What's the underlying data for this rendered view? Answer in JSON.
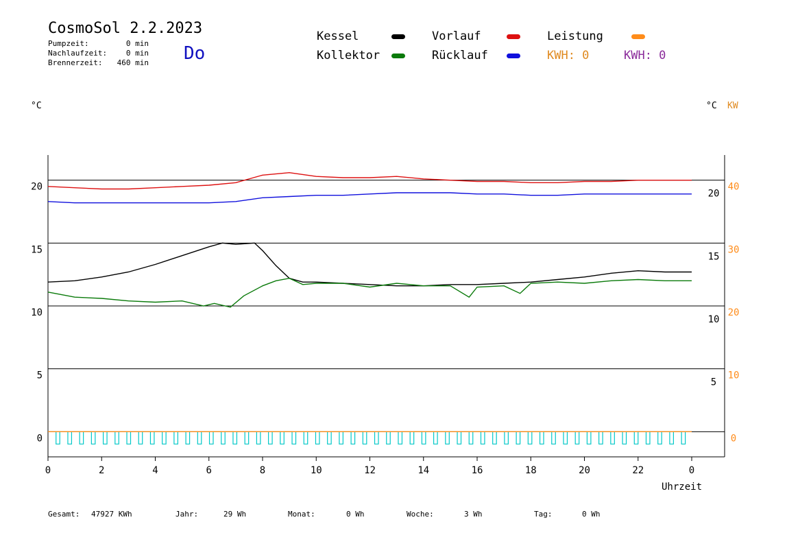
{
  "header": {
    "title": "CosmoSol 2.2.2023",
    "day": "Do",
    "stats": [
      {
        "label": "Pumpzeit:",
        "value": "0 min"
      },
      {
        "label": "Nachlaufzeit:",
        "value": "0 min"
      },
      {
        "label": "Brennerzeit:",
        "value": "460 min"
      }
    ]
  },
  "legend": {
    "kessel": "Kessel",
    "vorlauf": "Vorlauf",
    "leistung": "Leistung",
    "kollektor": "Kollektor",
    "ruecklauf": "Rücklauf",
    "kwh1": "KWH: 0",
    "kwh2": "KWH: 0"
  },
  "colors": {
    "kessel": "#000000",
    "vorlauf": "#dd1010",
    "leistung": "#ff8c1a",
    "kollektor": "#0a7a0a",
    "ruecklauf": "#1010dd",
    "kwh1": "#e08a20",
    "kwh2": "#8a2a9a",
    "pump": "#00c8c8"
  },
  "units": {
    "left": "°C",
    "right_c": "°C",
    "right_kw": "KW",
    "xlabel": "Uhrzeit"
  },
  "footer": [
    {
      "label": "Gesamt:",
      "value": "47927 KWh"
    },
    {
      "label": "Jahr:",
      "value": "29 Wh"
    },
    {
      "label": "Monat:",
      "value": "0 Wh"
    },
    {
      "label": "Woche:",
      "value": "3 Wh"
    },
    {
      "label": "Tag:",
      "value": "0 Wh"
    }
  ],
  "chart_data": {
    "type": "line",
    "xlabel": "Uhrzeit",
    "x_ticks": [
      "0",
      "2",
      "4",
      "6",
      "8",
      "10",
      "12",
      "14",
      "16",
      "18",
      "20",
      "22",
      "0"
    ],
    "xlim": [
      0,
      24
    ],
    "ylim": [
      -2,
      22
    ],
    "y_ticks_left": [
      "20",
      "15",
      "10",
      "5",
      "0"
    ],
    "y_ticks_right_c": [
      "20",
      "15",
      "10",
      "5"
    ],
    "y_ticks_right_kw": [
      "40",
      "30",
      "20",
      "10",
      "0"
    ],
    "grid_y": [
      0,
      5,
      10,
      15,
      20
    ],
    "series": [
      {
        "name": "Vorlauf",
        "color": "#dd1010",
        "x": [
          0,
          1,
          2,
          3,
          4,
          5,
          6,
          7,
          8,
          9,
          10,
          11,
          12,
          13,
          14,
          15,
          16,
          17,
          18,
          19,
          20,
          21,
          22,
          23,
          24
        ],
        "y": [
          19.5,
          19.4,
          19.3,
          19.3,
          19.4,
          19.5,
          19.6,
          19.8,
          20.4,
          20.6,
          20.3,
          20.2,
          20.2,
          20.3,
          20.1,
          20.0,
          19.9,
          19.9,
          19.8,
          19.8,
          19.9,
          19.9,
          20.0,
          20.0,
          20.0
        ]
      },
      {
        "name": "Rücklauf",
        "color": "#1010dd",
        "x": [
          0,
          1,
          2,
          3,
          4,
          5,
          6,
          7,
          8,
          9,
          10,
          11,
          12,
          13,
          14,
          15,
          16,
          17,
          18,
          19,
          20,
          21,
          22,
          23,
          24
        ],
        "y": [
          18.3,
          18.2,
          18.2,
          18.2,
          18.2,
          18.2,
          18.2,
          18.3,
          18.6,
          18.7,
          18.8,
          18.8,
          18.9,
          19.0,
          19.0,
          19.0,
          18.9,
          18.9,
          18.8,
          18.8,
          18.9,
          18.9,
          18.9,
          18.9,
          18.9
        ]
      },
      {
        "name": "Kessel",
        "color": "#000000",
        "x": [
          0,
          1,
          2,
          3,
          4,
          5,
          6,
          6.5,
          7,
          7.7,
          8,
          8.5,
          9,
          9.5,
          10,
          11,
          12,
          13,
          14,
          15,
          16,
          17,
          18,
          19,
          20,
          21,
          22,
          23,
          24
        ],
        "y": [
          11.9,
          12.0,
          12.3,
          12.7,
          13.3,
          14.0,
          14.7,
          15.0,
          14.9,
          15.0,
          14.4,
          13.2,
          12.2,
          11.9,
          11.9,
          11.8,
          11.7,
          11.6,
          11.6,
          11.7,
          11.7,
          11.8,
          11.9,
          12.1,
          12.3,
          12.6,
          12.8,
          12.7,
          12.7
        ]
      },
      {
        "name": "Kollektor",
        "color": "#0a7a0a",
        "x": [
          0,
          1,
          2,
          3,
          4,
          5,
          5.8,
          6.2,
          6.8,
          7.3,
          8,
          8.5,
          9,
          9.5,
          10,
          11,
          12,
          13,
          14,
          15,
          15.7,
          16,
          17,
          17.6,
          18,
          19,
          20,
          21,
          22,
          23,
          24
        ],
        "y": [
          11.1,
          10.7,
          10.6,
          10.4,
          10.3,
          10.4,
          10.0,
          10.2,
          9.9,
          10.8,
          11.6,
          12.0,
          12.2,
          11.7,
          11.8,
          11.8,
          11.5,
          11.8,
          11.6,
          11.6,
          10.7,
          11.5,
          11.6,
          11.0,
          11.8,
          11.9,
          11.8,
          12.0,
          12.1,
          12.0,
          12.0
        ]
      },
      {
        "name": "Leistung",
        "color": "#ff8c1a",
        "x": [
          0,
          24
        ],
        "y": [
          0,
          0
        ]
      }
    ]
  }
}
